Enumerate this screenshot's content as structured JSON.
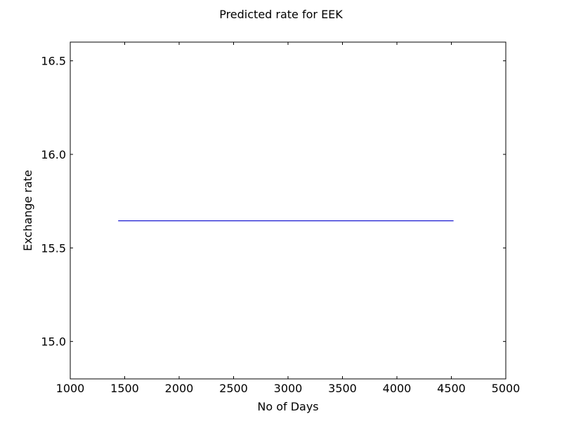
{
  "chart_data": {
    "type": "line",
    "title": "Predicted rate for EEK",
    "xlabel": "No of Days",
    "ylabel": "Exchange rate",
    "xlim": [
      1000,
      5000
    ],
    "ylim": [
      14.8,
      16.6
    ],
    "xticks": [
      1000,
      1500,
      2000,
      2500,
      3000,
      3500,
      4000,
      4500,
      5000
    ],
    "xtick_labels": [
      "1000",
      "1500",
      "2000",
      "2500",
      "3000",
      "3500",
      "4000",
      "4500",
      "5000"
    ],
    "yticks": [
      15.0,
      15.5,
      16.0,
      16.5
    ],
    "ytick_labels": [
      "15.0",
      "15.5",
      "16.0",
      "16.5"
    ],
    "grid": false,
    "series": [
      {
        "color": "#0000cc",
        "x": [
          1440,
          4520
        ],
        "y": [
          15.645,
          15.645
        ]
      }
    ]
  }
}
